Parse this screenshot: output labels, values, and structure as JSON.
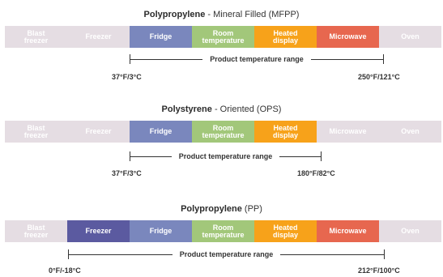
{
  "colors": {
    "inactive": "#e5dde3",
    "freezer": "#5b5aa0",
    "fridge": "#7a87bd",
    "room": "#a2c77a",
    "heated": "#f7a21a",
    "microwave": "#e7674f"
  },
  "categories": [
    "Blast\nfreezer",
    "Freezer",
    "Fridge",
    "Room\ntemperature",
    "Heated\ndisplay",
    "Microwave",
    "Oven"
  ],
  "range_label": "Product temperature range",
  "sections": [
    {
      "title_bold": "Polypropylene",
      "title_rest": " - Mineral Filled (MFPP)",
      "active": [
        false,
        false,
        true,
        true,
        true,
        true,
        false
      ],
      "min_label": "37°F/3°C",
      "max_label": "250°F/121°C"
    },
    {
      "title_bold": "Polystyrene",
      "title_rest": " - Oriented (OPS)",
      "active": [
        false,
        false,
        true,
        true,
        true,
        false,
        false
      ],
      "min_label": "37°F/3°C",
      "max_label": "180°F/82°C"
    },
    {
      "title_bold": "Polypropylene",
      "title_rest": " (PP)",
      "active": [
        false,
        true,
        true,
        true,
        true,
        true,
        false
      ],
      "min_label": "0°F/-18°C",
      "max_label": "212°F/100°C"
    }
  ]
}
